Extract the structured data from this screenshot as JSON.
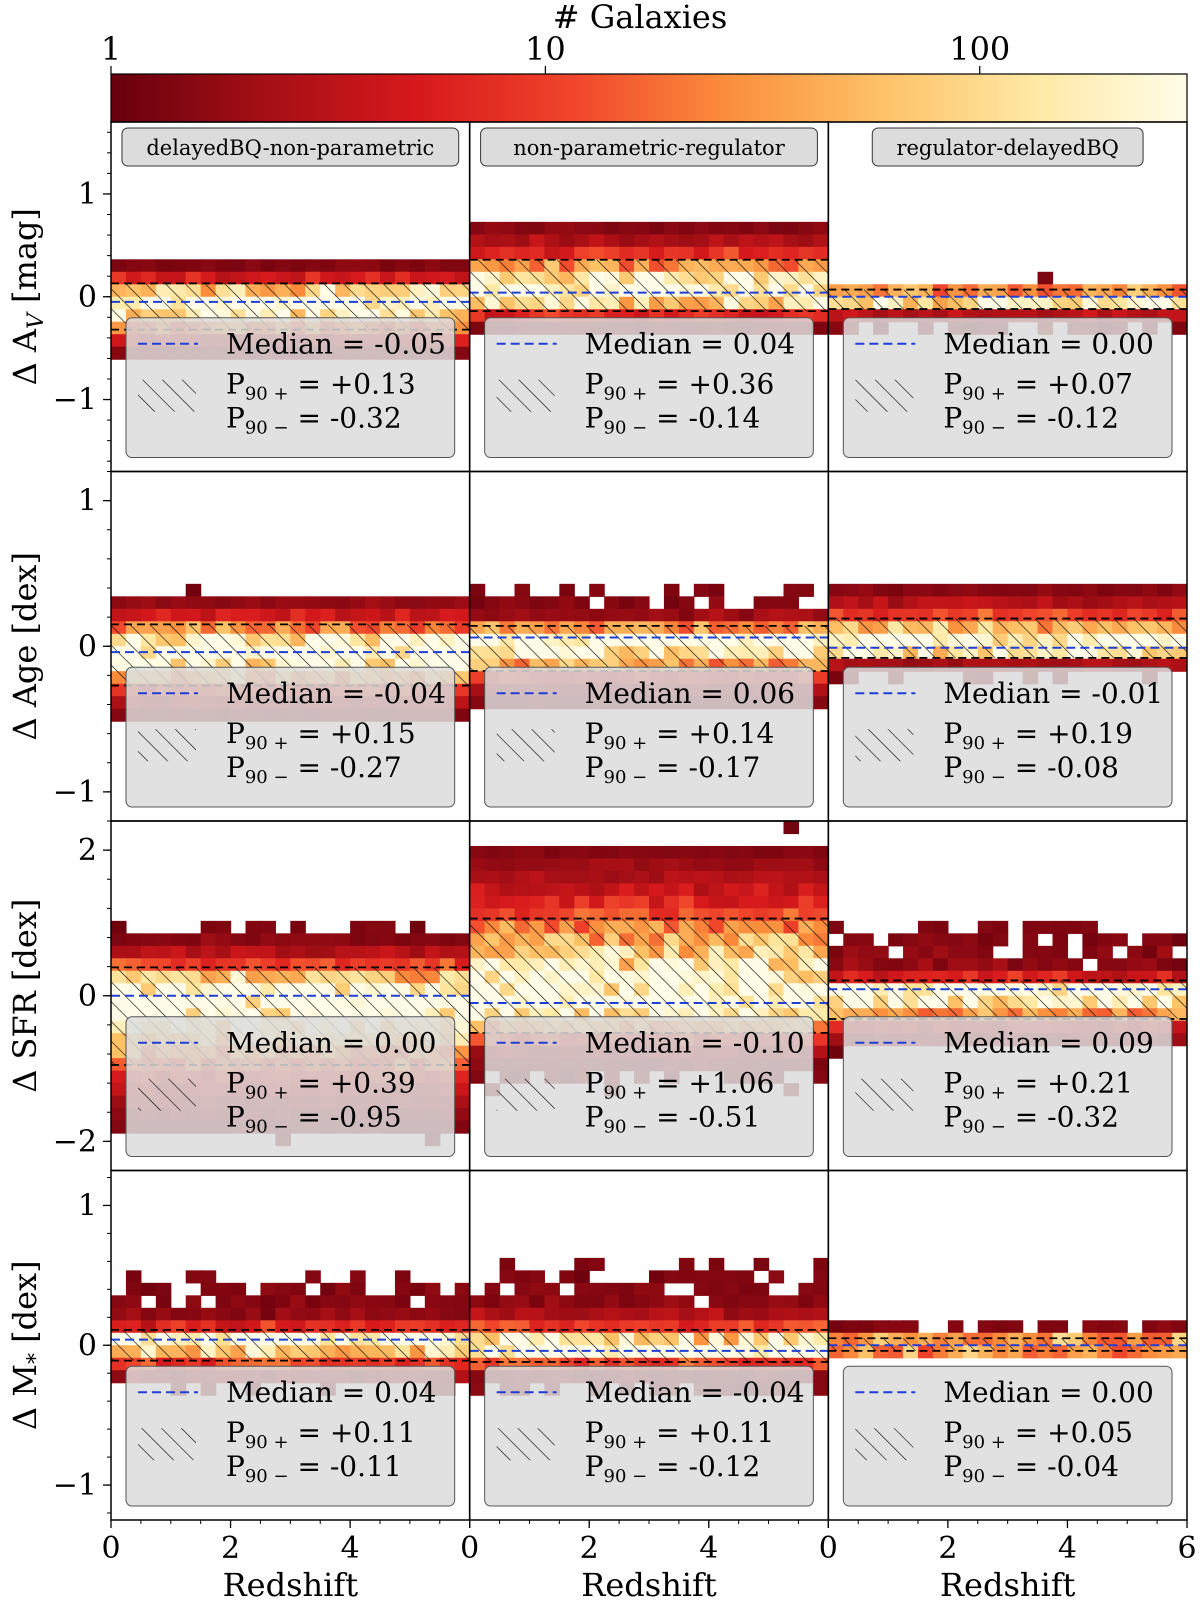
{
  "colorbar": {
    "label": "# Galaxies",
    "ticks": [
      {
        "label": "1",
        "value": 1
      },
      {
        "label": "10",
        "value": 10
      },
      {
        "label": "100",
        "value": 100
      }
    ],
    "range": [
      1,
      300
    ],
    "scale": "log",
    "colormap": [
      "#67000d",
      "#a50f15",
      "#d7191c",
      "#f0452b",
      "#fb8d3c",
      "#fec166",
      "#ffe8a3",
      "#fffde8"
    ]
  },
  "xlabel": "Redshift",
  "xlim": [
    0,
    6
  ],
  "xticks": [
    0,
    2,
    4,
    6
  ],
  "bins": {
    "x_count": 24,
    "y_count": 28
  },
  "columns": [
    {
      "title": "delayedBQ-non-parametric"
    },
    {
      "title": "non-parametric-regulator"
    },
    {
      "title": "regulator-delayedBQ"
    }
  ],
  "rows": [
    {
      "ylabel": "Δ A",
      "ylabel_sub": "V",
      "ylabel_unit": " [mag]",
      "ylim": [
        -1.7,
        1.7
      ],
      "yticks": [
        -1,
        0,
        1
      ],
      "ytick_labels": [
        "−1",
        "0",
        "1"
      ]
    },
    {
      "ylabel": "Δ Age [dex]",
      "ylabel_sub": "",
      "ylabel_unit": "",
      "ylim": [
        -1.2,
        1.2
      ],
      "yticks": [
        -1,
        0,
        1
      ],
      "ytick_labels": [
        "−1",
        "0",
        "1"
      ]
    },
    {
      "ylabel": "Δ SFR [dex]",
      "ylabel_sub": "",
      "ylabel_unit": "",
      "ylim": [
        -2.4,
        2.4
      ],
      "yticks": [
        -2,
        0,
        2
      ],
      "ytick_labels": [
        "−2",
        "0",
        "2"
      ]
    },
    {
      "ylabel": "Δ M",
      "ylabel_sub": "*",
      "ylabel_unit": " [dex]",
      "ylim": [
        -1.25,
        1.25
      ],
      "yticks": [
        -1,
        0,
        1
      ],
      "ytick_labels": [
        "−1",
        "0",
        "1"
      ]
    }
  ],
  "chart_data": {
    "type": "heatmap",
    "description": "3x4 grid of 2D histograms of parameter differences vs redshift, colour = number of galaxies",
    "legend_labels": {
      "median": "Median = ",
      "p90plus": "P",
      "p90minus": "P",
      "p_sub_plus": "90 +",
      "p_sub_minus": "90 −"
    },
    "panels": [
      {
        "row": 0,
        "col": 0,
        "median": -0.05,
        "median_label": "-0.05",
        "p90_plus": 0.13,
        "p90_plus_label": "+0.13",
        "p90_minus": -0.32,
        "p90_minus_label": "-0.32",
        "spread_up": 0.45,
        "spread_down": 0.6
      },
      {
        "row": 0,
        "col": 1,
        "median": 0.04,
        "median_label": "0.04",
        "p90_plus": 0.36,
        "p90_plus_label": "+0.36",
        "p90_minus": -0.14,
        "p90_minus_label": "-0.14",
        "spread_up": 0.9,
        "spread_down": 0.45
      },
      {
        "row": 0,
        "col": 2,
        "median": 0.0,
        "median_label": "0.00",
        "p90_plus": 0.07,
        "p90_plus_label": "+0.07",
        "p90_minus": -0.12,
        "p90_minus_label": "-0.12",
        "spread_up": 0.25,
        "spread_down": 0.45
      },
      {
        "row": 1,
        "col": 0,
        "median": -0.04,
        "median_label": "-0.04",
        "p90_plus": 0.15,
        "p90_plus_label": "+0.15",
        "p90_minus": -0.27,
        "p90_minus_label": "-0.27",
        "spread_up": 0.5,
        "spread_down": 0.55
      },
      {
        "row": 1,
        "col": 1,
        "median": 0.06,
        "median_label": "0.06",
        "p90_plus": 0.14,
        "p90_plus_label": "+0.14",
        "p90_minus": -0.17,
        "p90_minus_label": "-0.17",
        "spread_up": 0.5,
        "spread_down": 0.55
      },
      {
        "row": 1,
        "col": 2,
        "median": -0.01,
        "median_label": "-0.01",
        "p90_plus": 0.19,
        "p90_plus_label": "+0.19",
        "p90_minus": -0.08,
        "p90_minus_label": "-0.08",
        "spread_up": 0.6,
        "spread_down": 0.3
      },
      {
        "row": 2,
        "col": 0,
        "median": 0.0,
        "median_label": "0.00",
        "p90_plus": 0.39,
        "p90_plus_label": "+0.39",
        "p90_minus": -0.95,
        "p90_minus_label": "-0.95",
        "spread_up": 1.4,
        "spread_down": 2.0
      },
      {
        "row": 2,
        "col": 1,
        "median": -0.1,
        "median_label": "-0.10",
        "p90_plus": 1.06,
        "p90_plus_label": "+1.06",
        "p90_minus": -0.51,
        "p90_minus_label": "-0.51",
        "spread_up": 2.2,
        "spread_down": 1.8
      },
      {
        "row": 2,
        "col": 2,
        "median": 0.09,
        "median_label": "0.09",
        "p90_plus": 0.21,
        "p90_plus_label": "+0.21",
        "p90_minus": -0.32,
        "p90_minus_label": "-0.32",
        "spread_up": 1.3,
        "spread_down": 0.9
      },
      {
        "row": 3,
        "col": 0,
        "median": 0.04,
        "median_label": "0.04",
        "p90_plus": 0.11,
        "p90_plus_label": "+0.11",
        "p90_minus": -0.11,
        "p90_minus_label": "-0.11",
        "spread_up": 0.7,
        "spread_down": 0.55
      },
      {
        "row": 3,
        "col": 1,
        "median": -0.04,
        "median_label": "-0.04",
        "p90_plus": 0.11,
        "p90_plus_label": "+0.11",
        "p90_minus": -0.12,
        "p90_minus_label": "-0.12",
        "spread_up": 0.9,
        "spread_down": 0.5
      },
      {
        "row": 3,
        "col": 2,
        "median": 0.0,
        "median_label": "0.00",
        "p90_plus": 0.05,
        "p90_plus_label": "+0.05",
        "p90_minus": -0.04,
        "p90_minus_label": "-0.04",
        "spread_up": 0.25,
        "spread_down": 0.15
      }
    ]
  }
}
